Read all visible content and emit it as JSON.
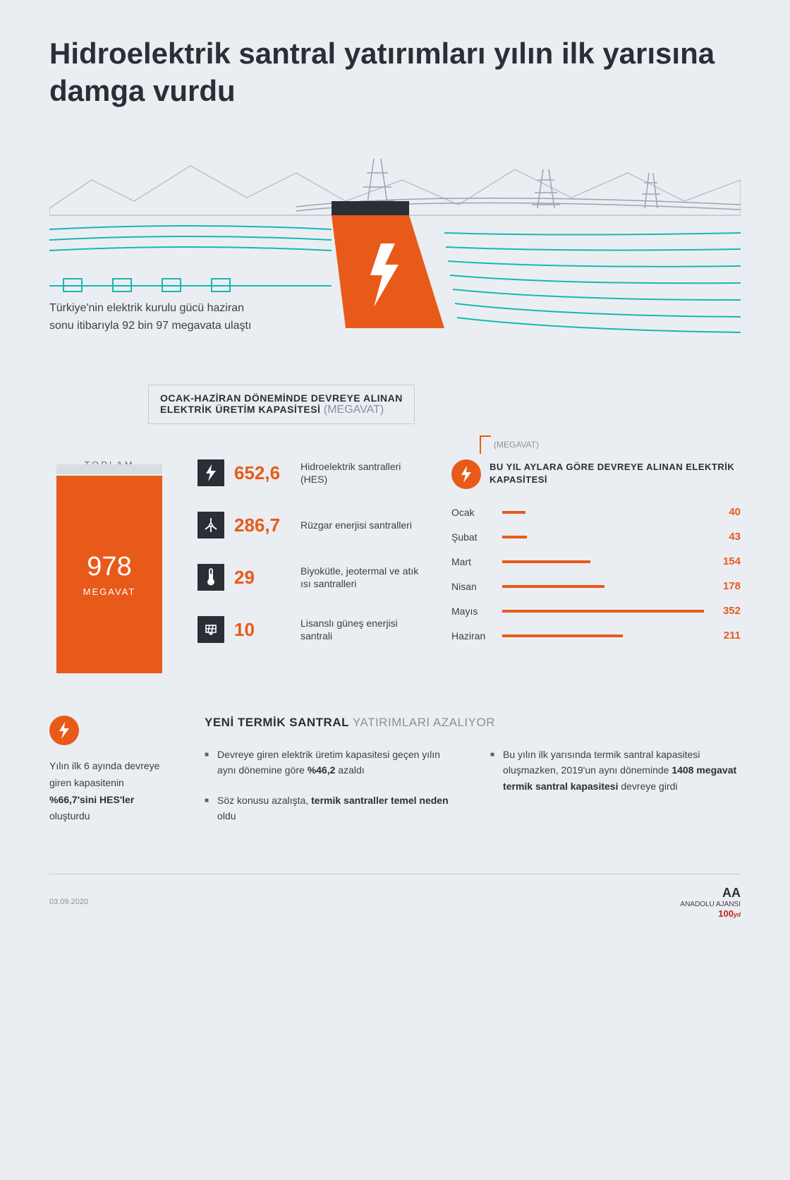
{
  "colors": {
    "accent": "#e85a1a",
    "dark": "#2a2f36",
    "gray": "#8a919a",
    "teal": "#1ab5b5",
    "bg": "#eaeef2"
  },
  "headline": "Hidroelektrik santral yatırımları yılın ilk yarısına damga vurdu",
  "intro": "Türkiye'nin elektrik kurulu gücü haziran sonu itibarıyla 92 bin 97 megavata ulaştı",
  "section_label": {
    "line1": "OCAK-HAZİRAN DÖNEMİNDE DEVREYE ALINAN",
    "line2": "ELEKTRİK ÜRETİM KAPASİTESİ",
    "unit": "(MEGAVAT)"
  },
  "total": {
    "label": "TOPLAM",
    "value": "978",
    "unit": "MEGAVAT"
  },
  "sources": [
    {
      "icon": "bolt",
      "value": "652,6",
      "name": "Hidroelektrik santralleri (HES)"
    },
    {
      "icon": "wind",
      "value": "286,7",
      "name": "Rüzgar enerjisi santralleri"
    },
    {
      "icon": "thermo",
      "value": "29",
      "name": "Biyokütle, jeotermal ve atık ısı santralleri"
    },
    {
      "icon": "solar",
      "value": "10",
      "name": "Lisanslı güneş enerjisi santrali"
    }
  ],
  "monthly": {
    "unit": "(MEGAVAT)",
    "title": "BU YIL AYLARA GÖRE DEVREYE ALINAN ELEKTRİK KAPASİTESİ",
    "max": 352,
    "rows": [
      {
        "month": "Ocak",
        "value": 40
      },
      {
        "month": "Şubat",
        "value": 43
      },
      {
        "month": "Mart",
        "value": 154
      },
      {
        "month": "Nisan",
        "value": 178
      },
      {
        "month": "Mayıs",
        "value": 352
      },
      {
        "month": "Haziran",
        "value": 211
      }
    ]
  },
  "bottom_left": {
    "text_pre": "Yılın ilk 6 ayında devreye giren kapasitenin ",
    "pct": "%66,7'sini HES'ler",
    "text_post": " oluşturdu"
  },
  "subsection": {
    "title_bold": "YENİ TERMİK SANTRAL",
    "title_light": " YATIRIMLARI AZALIYOR"
  },
  "bullets_col1": [
    "Devreye giren elektrik üretim kapasitesi geçen yılın aynı dönemine göre <b>%46,2</b> azaldı",
    "Söz konusu azalışta, <b>termik santraller temel neden</b> oldu"
  ],
  "bullets_col2": [
    "Bu yılın ilk yarısında termik santral kapasitesi oluşmazken, 2019'un aynı döneminde <b>1408 megavat termik santral kapasitesi</b> devreye girdi"
  ],
  "footer": {
    "date": "03.09.2020",
    "agency": "ANADOLU AJANSI",
    "logo": "AA",
    "badge": "100"
  }
}
